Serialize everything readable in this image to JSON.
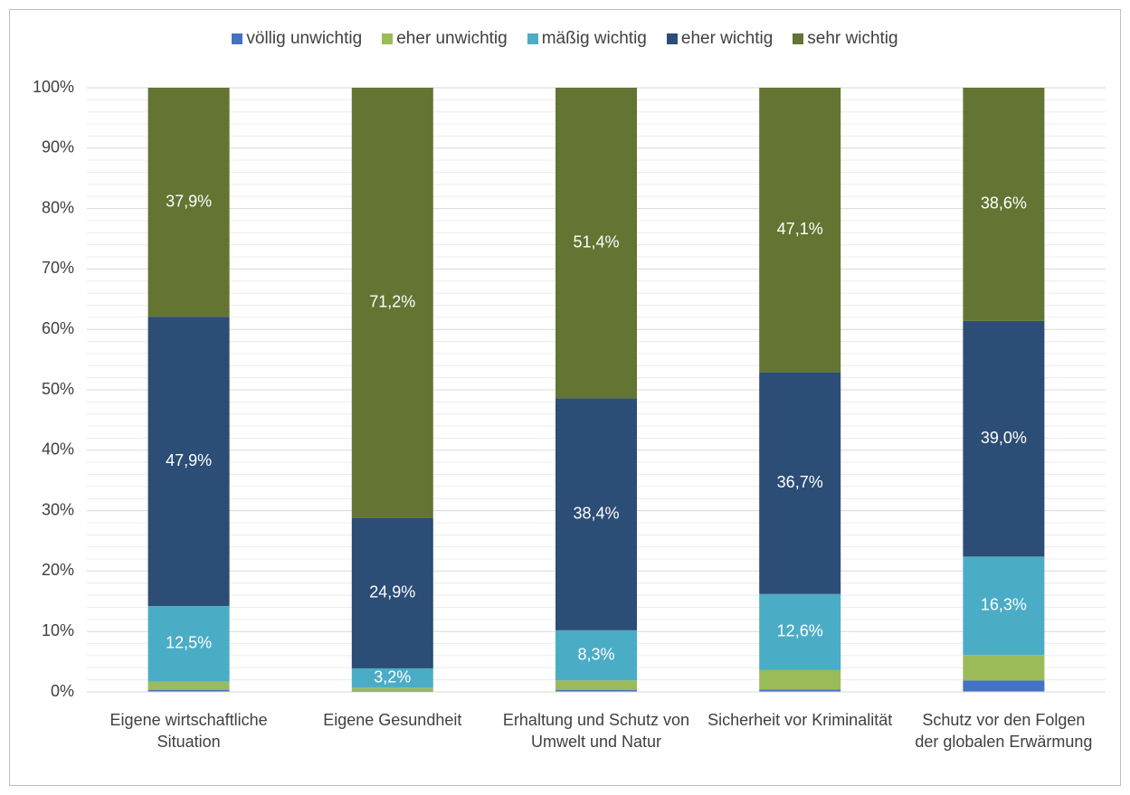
{
  "chart_data": {
    "type": "stacked_bar",
    "categories": [
      "Eigene wirtschaftliche Situation",
      "Eigene Gesundheit",
      "Erhaltung und Schutz von Umwelt und Natur",
      "Sicherheit vor Kriminalität",
      "Schutz vor den Folgen der globalen Erwärmung"
    ],
    "series": [
      {
        "name": "völlig unwichtig",
        "color": "#4472c4",
        "values": [
          0.3,
          0.2,
          0.3,
          0.4,
          1.9
        ],
        "value_labels": [
          null,
          null,
          null,
          null,
          null
        ]
      },
      {
        "name": "eher unwichtig",
        "color": "#9bbb59",
        "values": [
          1.4,
          0.5,
          1.6,
          3.2,
          4.2
        ],
        "value_labels": [
          null,
          null,
          null,
          null,
          null
        ]
      },
      {
        "name": "mäßig wichtig",
        "color": "#4bacc6",
        "values": [
          12.5,
          3.2,
          8.3,
          12.6,
          16.3
        ],
        "value_labels": [
          "12,5%",
          "3,2%",
          "8,3%",
          "12,6%",
          "16,3%"
        ]
      },
      {
        "name": "eher wichtig",
        "color": "#2c4d75",
        "values": [
          47.9,
          24.9,
          38.4,
          36.7,
          39.0
        ],
        "value_labels": [
          "47,9%",
          "24,9%",
          "38,4%",
          "36,7%",
          "39,0%"
        ]
      },
      {
        "name": "sehr wichtig",
        "color": "#647432",
        "values": [
          37.9,
          71.2,
          51.4,
          47.1,
          38.6
        ],
        "value_labels": [
          "37,9%",
          "71,2%",
          "51,4%",
          "47,1%",
          "38,6%"
        ]
      }
    ],
    "ylim": [
      0,
      100
    ],
    "yticks": [
      {
        "value": 0,
        "label": "0%"
      },
      {
        "value": 10,
        "label": "10%"
      },
      {
        "value": 20,
        "label": "20%"
      },
      {
        "value": 30,
        "label": "30%"
      },
      {
        "value": 40,
        "label": "40%"
      },
      {
        "value": 50,
        "label": "50%"
      },
      {
        "value": 60,
        "label": "60%"
      },
      {
        "value": 70,
        "label": "70%"
      },
      {
        "value": 80,
        "label": "80%"
      },
      {
        "value": 90,
        "label": "90%"
      },
      {
        "value": 100,
        "label": "100%"
      }
    ],
    "grid": true,
    "legend": "top"
  }
}
